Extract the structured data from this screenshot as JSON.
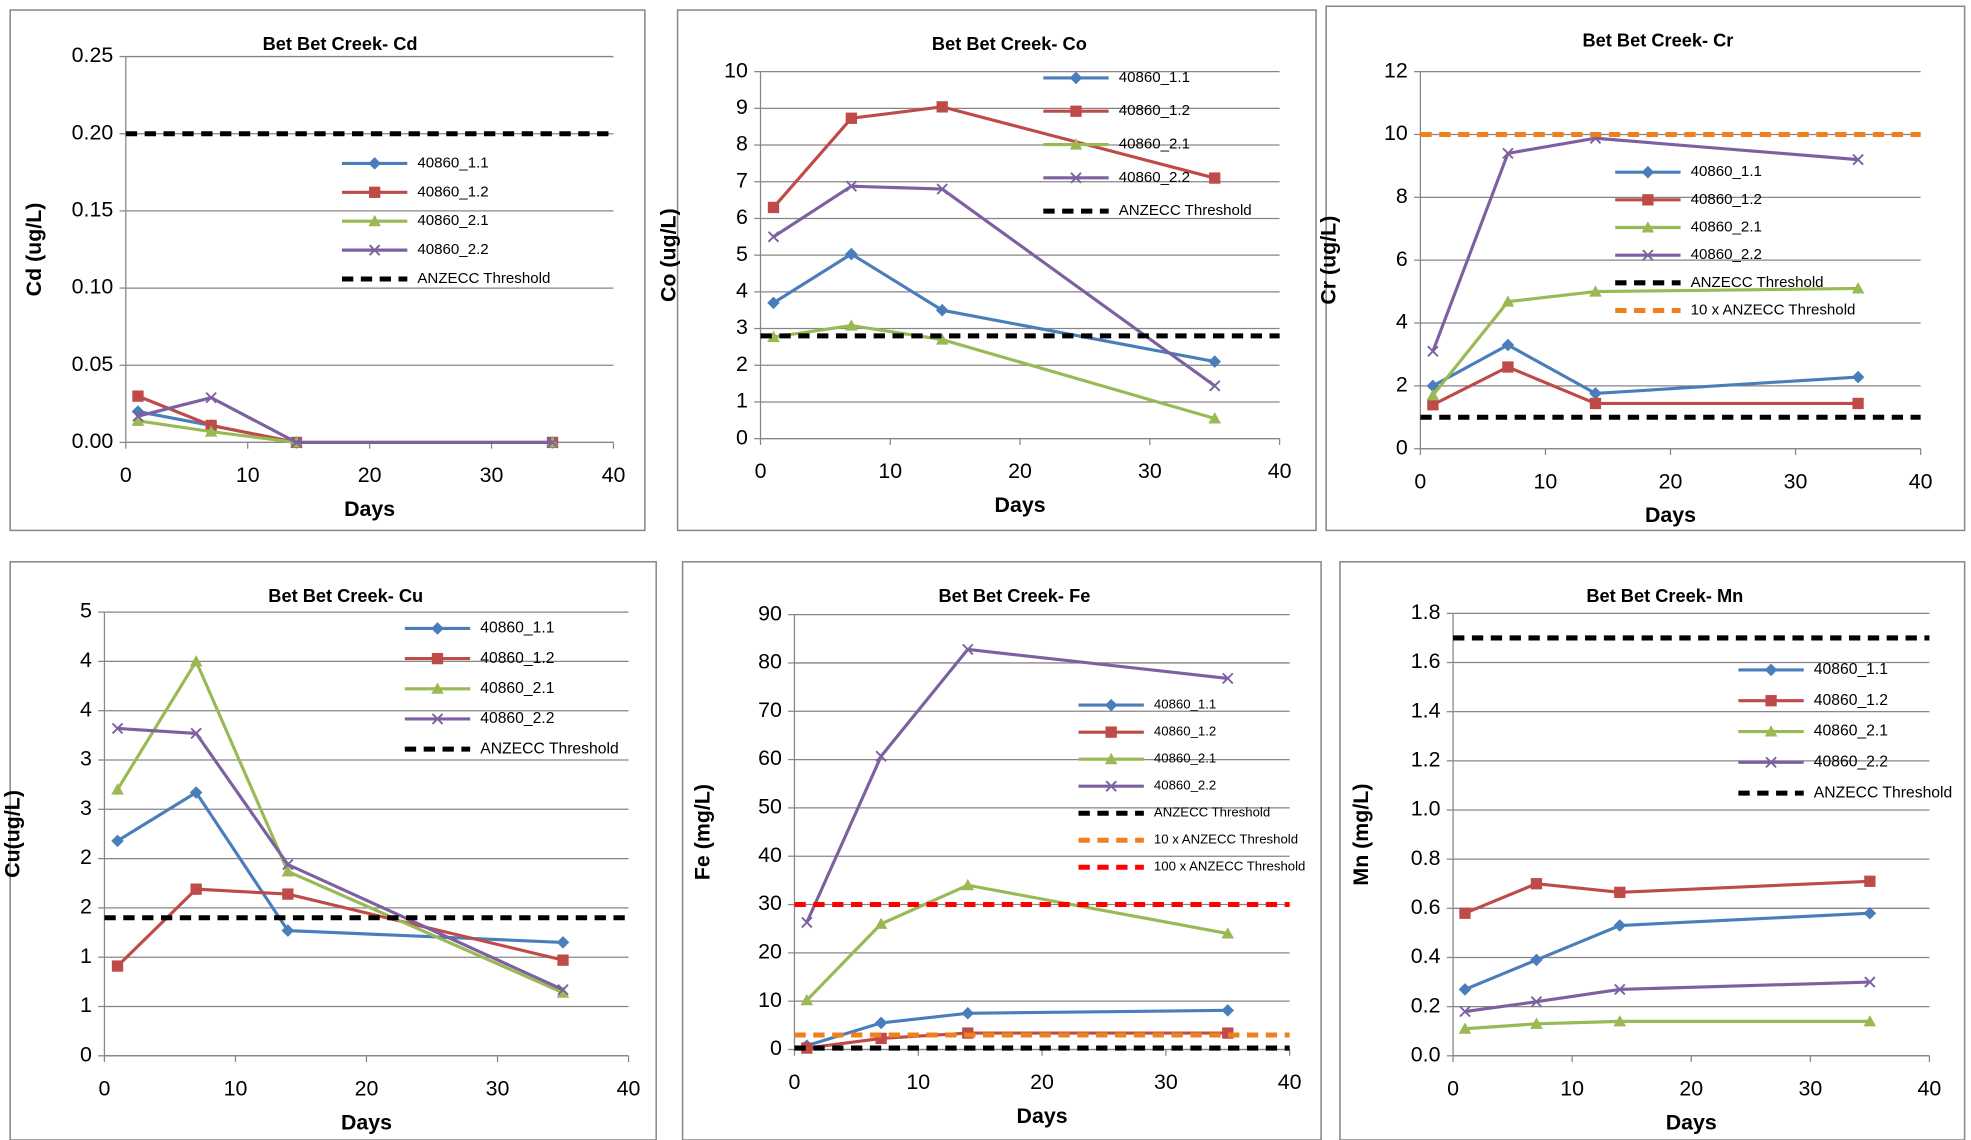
{
  "chart_data": [
    {
      "type": "line",
      "title": "Bet Bet Creek- Cd",
      "x_label": "Days",
      "y_label": "Cd (ug/L)",
      "xlim": [
        0,
        40
      ],
      "xticks": [
        0,
        10,
        20,
        30,
        40
      ],
      "ylim": [
        0,
        0.25
      ],
      "yticks": [
        {
          "value": 0,
          "label": "0.00"
        },
        {
          "value": 0.05,
          "label": "0.05"
        },
        {
          "value": 0.1,
          "label": "0.10"
        },
        {
          "value": 0.15,
          "label": "0.15"
        },
        {
          "value": 0.2,
          "label": "0.20"
        },
        {
          "value": 0.25,
          "label": "0.25"
        }
      ],
      "grid": true,
      "series": [
        {
          "name": "40860_1.1",
          "color": "#4a7ebb",
          "marker": "diamond",
          "x": [
            1,
            7,
            14,
            35
          ],
          "values": [
            0.02,
            0.011,
            0,
            0
          ]
        },
        {
          "name": "40860_1.2",
          "color": "#be4b48",
          "marker": "square",
          "x": [
            1,
            7,
            14,
            35
          ],
          "values": [
            0.03,
            0.011,
            0,
            0
          ]
        },
        {
          "name": "40860_2.1",
          "color": "#98b954",
          "marker": "triangle",
          "x": [
            1,
            7,
            14,
            35
          ],
          "values": [
            0.014,
            0.007,
            0,
            0
          ]
        },
        {
          "name": "40860_2.2",
          "color": "#7d60a0",
          "marker": "x",
          "x": [
            1,
            7,
            14,
            35
          ],
          "values": [
            0.017,
            0.029,
            0,
            0
          ]
        },
        {
          "name": "ANZECC Threshold",
          "color": "#000000",
          "dash": true,
          "x": [
            0,
            40
          ],
          "values": [
            0.2,
            0.2
          ]
        }
      ]
    },
    {
      "type": "line",
      "title": "Bet Bet Creek- Co",
      "x_label": "Days",
      "y_label": "Co (ug/L)",
      "xlim": [
        0,
        40
      ],
      "xticks": [
        0,
        10,
        20,
        30,
        40
      ],
      "ylim": [
        0,
        10
      ],
      "yticks": [
        0,
        1,
        2,
        3,
        4,
        5,
        6,
        7,
        8,
        9,
        10
      ],
      "grid": true,
      "series": [
        {
          "name": "40860_1.1",
          "color": "#4a7ebb",
          "marker": "diamond",
          "x": [
            1,
            7,
            14,
            35
          ],
          "values": [
            3.7,
            5.03,
            3.5,
            2.1
          ]
        },
        {
          "name": "40860_1.2",
          "color": "#be4b48",
          "marker": "square",
          "x": [
            1,
            7,
            14,
            35
          ],
          "values": [
            6.3,
            8.73,
            9.04,
            7.1
          ]
        },
        {
          "name": "40860_2.1",
          "color": "#98b954",
          "marker": "triangle",
          "x": [
            1,
            7,
            14,
            35
          ],
          "values": [
            2.77,
            3.08,
            2.7,
            0.55
          ]
        },
        {
          "name": "40860_2.2",
          "color": "#7d60a0",
          "marker": "x",
          "x": [
            1,
            7,
            14,
            35
          ],
          "values": [
            5.5,
            6.88,
            6.8,
            1.44
          ]
        },
        {
          "name": "ANZECC Threshold",
          "color": "#000000",
          "dash": true,
          "x": [
            0,
            40
          ],
          "values": [
            2.8,
            2.8
          ]
        }
      ]
    },
    {
      "type": "line",
      "title": "Bet Bet Creek- Cr",
      "x_label": "Days",
      "y_label": "Cr (ug/L)",
      "xlim": [
        0,
        40
      ],
      "xticks": [
        0,
        10,
        20,
        30,
        40
      ],
      "ylim": [
        0,
        12
      ],
      "yticks": [
        0,
        2,
        4,
        6,
        8,
        10,
        12
      ],
      "grid": true,
      "series": [
        {
          "name": "40860_1.1",
          "color": "#4a7ebb",
          "marker": "diamond",
          "x": [
            1,
            7,
            14,
            35
          ],
          "values": [
            2.0,
            3.3,
            1.76,
            2.28
          ]
        },
        {
          "name": "40860_1.2",
          "color": "#be4b48",
          "marker": "square",
          "x": [
            1,
            7,
            14,
            35
          ],
          "values": [
            1.4,
            2.6,
            1.44,
            1.44
          ]
        },
        {
          "name": "40860_2.1",
          "color": "#98b954",
          "marker": "triangle",
          "x": [
            1,
            7,
            14,
            35
          ],
          "values": [
            1.7,
            4.68,
            5.0,
            5.1
          ]
        },
        {
          "name": "40860_2.2",
          "color": "#7d60a0",
          "marker": "x",
          "x": [
            1,
            7,
            14,
            35
          ],
          "values": [
            3.1,
            9.4,
            9.88,
            9.2
          ]
        },
        {
          "name": "ANZECC Threshold",
          "color": "#000000",
          "dash": true,
          "x": [
            0,
            40
          ],
          "values": [
            1,
            1
          ]
        },
        {
          "name": "10 x ANZECC Threshold",
          "color": "#f07f1e",
          "dash": true,
          "x": [
            0,
            40
          ],
          "values": [
            10,
            10
          ]
        }
      ]
    },
    {
      "type": "line",
      "title": "Bet Bet Creek- Cu",
      "x_label": "Days",
      "y_label": "Cu(ug/L)",
      "xlim": [
        0,
        40
      ],
      "xticks": [
        0,
        10,
        20,
        30,
        40
      ],
      "ylim": [
        0,
        4.5
      ],
      "yticks": [
        0,
        {
          "value": 0.5,
          "label": "1"
        },
        1,
        {
          "value": 1.5,
          "label": "2"
        },
        2,
        {
          "value": 2.5,
          "label": "3"
        },
        3,
        {
          "value": 3.5,
          "label": "4"
        },
        4,
        {
          "value": 4.5,
          "label": "5"
        }
      ],
      "grid": true,
      "series": [
        {
          "name": "40860_1.1",
          "color": "#4a7ebb",
          "marker": "diamond",
          "x": [
            1,
            7,
            14,
            35
          ],
          "values": [
            2.18,
            2.67,
            1.27,
            1.15
          ]
        },
        {
          "name": "40860_1.2",
          "color": "#be4b48",
          "marker": "square",
          "x": [
            1,
            7,
            14,
            35
          ],
          "values": [
            0.91,
            1.69,
            1.64,
            0.97
          ]
        },
        {
          "name": "40860_2.1",
          "color": "#98b954",
          "marker": "triangle",
          "x": [
            1,
            7,
            14,
            35
          ],
          "values": [
            2.7,
            4.0,
            1.87,
            0.64
          ]
        },
        {
          "name": "40860_2.2",
          "color": "#7d60a0",
          "marker": "x",
          "x": [
            1,
            7,
            14,
            35
          ],
          "values": [
            3.32,
            3.27,
            1.94,
            0.67
          ]
        },
        {
          "name": "ANZECC Threshold",
          "color": "#000000",
          "dash": true,
          "x": [
            0,
            40
          ],
          "values": [
            1.4,
            1.4
          ]
        }
      ]
    },
    {
      "type": "line",
      "title": "Bet Bet Creek- Fe",
      "x_label": "Days",
      "y_label": "Fe (mg/L)",
      "xlim": [
        0,
        40
      ],
      "xticks": [
        0,
        10,
        20,
        30,
        40
      ],
      "ylim": [
        0,
        90
      ],
      "yticks": [
        0,
        10,
        20,
        30,
        40,
        50,
        60,
        70,
        80,
        90
      ],
      "grid": true,
      "series": [
        {
          "name": "40860_1.1",
          "color": "#4a7ebb",
          "marker": "diamond",
          "x": [
            1,
            7,
            14,
            35
          ],
          "values": [
            0.8,
            5.5,
            7.5,
            8.1
          ]
        },
        {
          "name": "40860_1.2",
          "color": "#be4b48",
          "marker": "square",
          "x": [
            1,
            7,
            14,
            35
          ],
          "values": [
            0.3,
            2.3,
            3.4,
            3.4
          ]
        },
        {
          "name": "40860_2.1",
          "color": "#98b954",
          "marker": "triangle",
          "x": [
            1,
            7,
            14,
            35
          ],
          "values": [
            10.2,
            26,
            34,
            24
          ]
        },
        {
          "name": "40860_2.2",
          "color": "#7d60a0",
          "marker": "x",
          "x": [
            1,
            7,
            14,
            35
          ],
          "values": [
            26.3,
            60.7,
            82.8,
            76.8
          ]
        },
        {
          "name": "ANZECC Threshold",
          "color": "#000000",
          "dash": true,
          "x": [
            0,
            40
          ],
          "values": [
            0.3,
            0.3
          ]
        },
        {
          "name": "10 x ANZECC Threshold",
          "color": "#f07f1e",
          "dash": true,
          "x": [
            0,
            40
          ],
          "values": [
            3,
            3
          ]
        },
        {
          "name": "100 x ANZECC Threshold",
          "color": "#ff0000",
          "dash": true,
          "x": [
            0,
            40
          ],
          "values": [
            30,
            30
          ]
        }
      ]
    },
    {
      "type": "line",
      "title": "Bet Bet Creek- Mn",
      "x_label": "Days",
      "y_label": "Mn (mg/L)",
      "xlim": [
        0,
        40
      ],
      "xticks": [
        0,
        10,
        20,
        30,
        40
      ],
      "ylim": [
        0,
        1.8
      ],
      "yticks": [
        {
          "value": 0,
          "label": "0.0"
        },
        0.2,
        0.4,
        0.6,
        0.8,
        {
          "value": 1,
          "label": "1.0"
        },
        1.2,
        1.4,
        1.6,
        1.8
      ],
      "grid": true,
      "series": [
        {
          "name": "40860_1.1",
          "color": "#4a7ebb",
          "marker": "diamond",
          "x": [
            1,
            7,
            14,
            35
          ],
          "values": [
            0.27,
            0.39,
            0.53,
            0.58
          ]
        },
        {
          "name": "40860_1.2",
          "color": "#be4b48",
          "marker": "square",
          "x": [
            1,
            7,
            14,
            35
          ],
          "values": [
            0.58,
            0.7,
            0.665,
            0.71
          ]
        },
        {
          "name": "40860_2.1",
          "color": "#98b954",
          "marker": "triangle",
          "x": [
            1,
            7,
            14,
            35
          ],
          "values": [
            0.11,
            0.13,
            0.14,
            0.14
          ]
        },
        {
          "name": "40860_2.2",
          "color": "#7d60a0",
          "marker": "x",
          "x": [
            1,
            7,
            14,
            35
          ],
          "values": [
            0.18,
            0.22,
            0.27,
            0.3
          ]
        },
        {
          "name": "ANZECC Threshold",
          "color": "#000000",
          "dash": true,
          "x": [
            0,
            40
          ],
          "values": [
            1.7,
            1.7
          ]
        }
      ]
    }
  ]
}
